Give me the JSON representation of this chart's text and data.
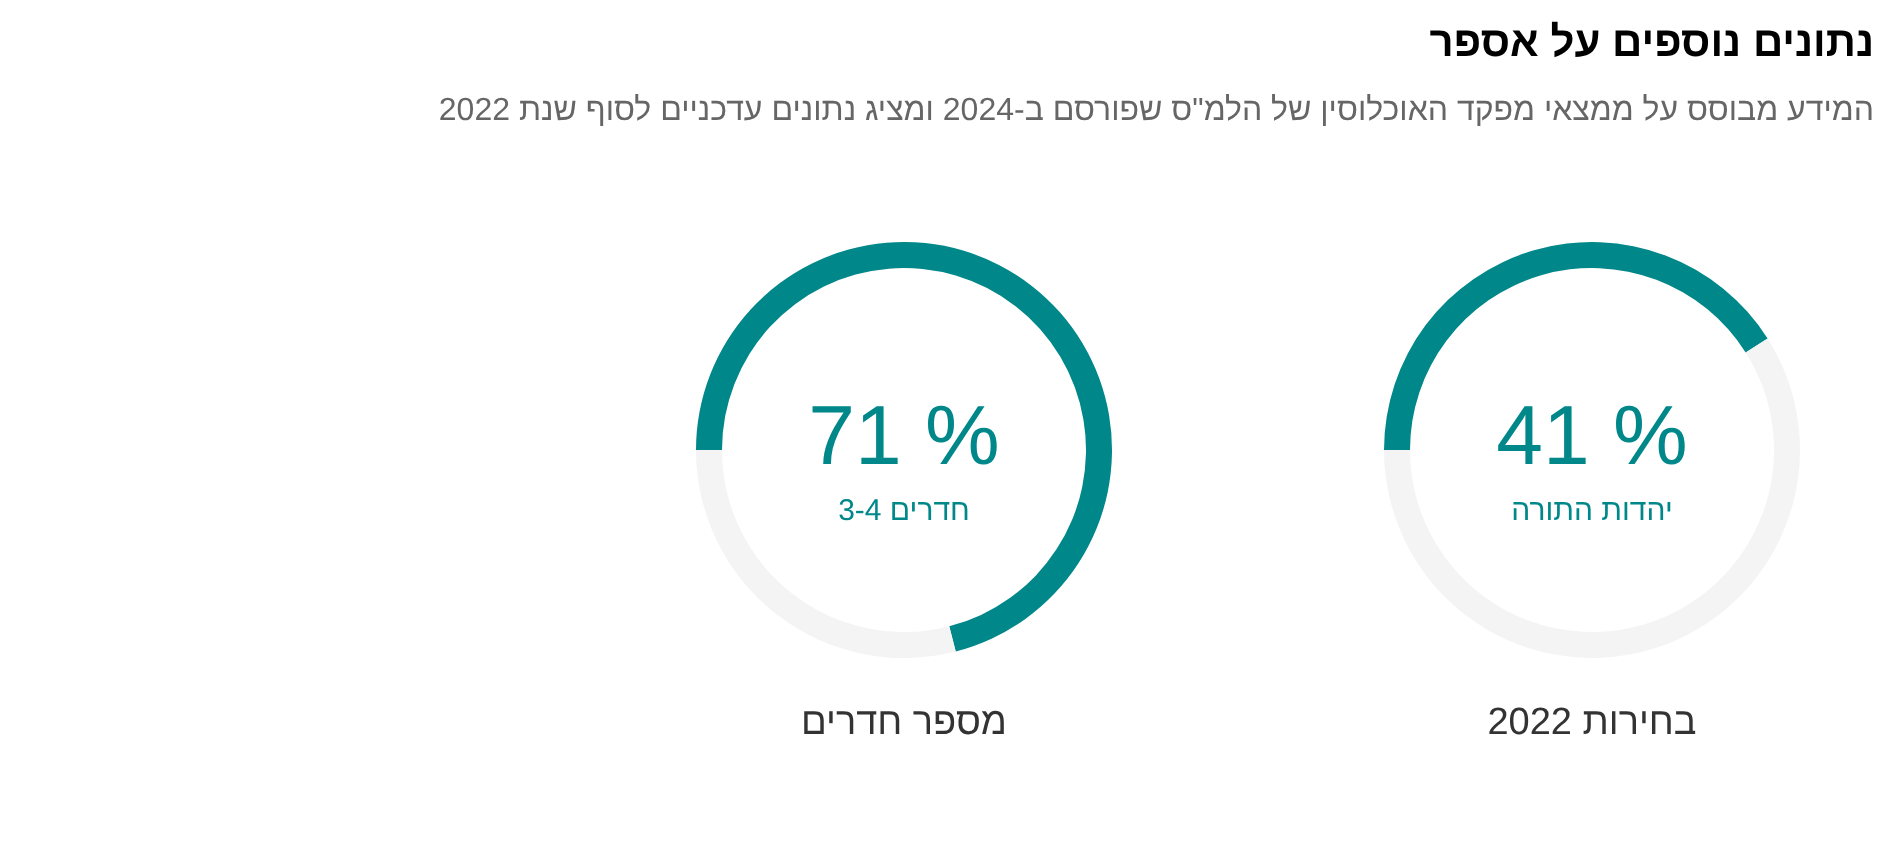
{
  "chart_data": [
    {
      "type": "donut",
      "title": "נתונים נוספים על אספר",
      "subtitle": "המידע מבוסס על ממצאי מפקד האוכלוסין של הלמ\"ס שפורסם ב-2024 ומציג נתונים עדכניים לסוף שנת 2022",
      "xlabel": "בחירות 2022",
      "categories": [
        "יהדות התורה",
        null
      ],
      "values": [
        41,
        59
      ],
      "colors": [
        "#00878a",
        "#f4f4f4"
      ],
      "value_labels": [
        "41 %",
        null
      ]
    },
    {
      "type": "donut",
      "xlabel": "מספר חדרים",
      "categories": [
        "חדרים 3-4",
        null
      ],
      "values": [
        71,
        29
      ],
      "colors": [
        "#00878a",
        "#f4f4f4"
      ],
      "value_labels": [
        "71 %",
        null
      ]
    }
  ]
}
